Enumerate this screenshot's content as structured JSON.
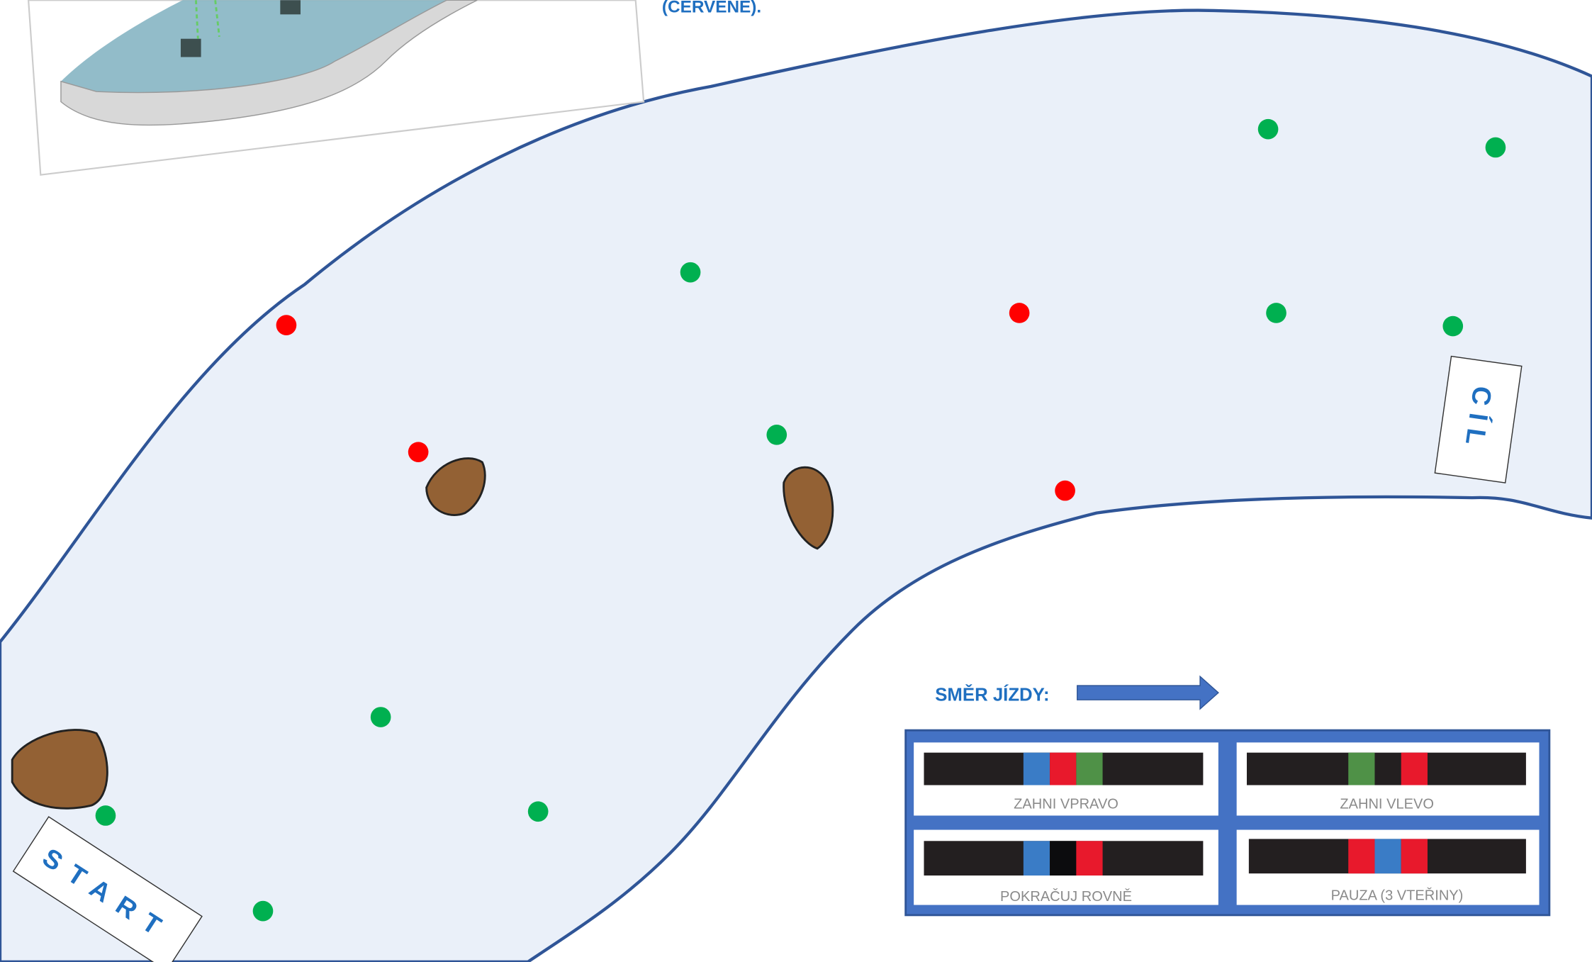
{
  "header_fragment": "(ČERVENÉ).",
  "labels": {
    "start": "START",
    "finish": "CÍL"
  },
  "legend": {
    "direction": "SMĚR JÍZDY:",
    "codes": [
      "ZAHNI VPRAVO",
      "ZAHNI VLEVO",
      "POKRAČUJ ROVNĚ",
      "PAUZA (3 VTEŘINY)"
    ]
  }
}
